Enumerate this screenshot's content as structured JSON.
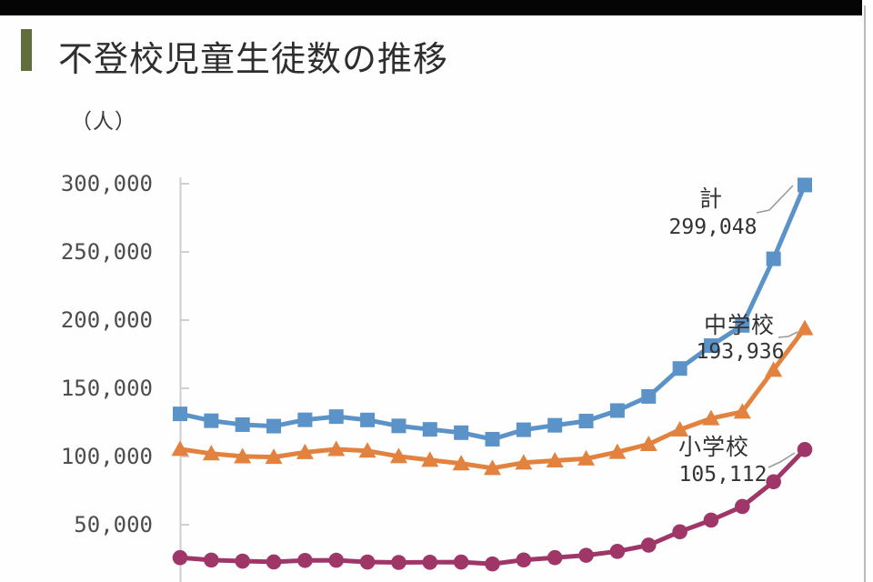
{
  "page": {
    "title": "不登校児童生徒数の推移"
  },
  "chart_data": {
    "type": "line",
    "title": "不登校児童生徒数の推移",
    "unit": "（人）",
    "ylim": [
      0,
      300000
    ],
    "grid": false,
    "x_axis_labels_visible": false,
    "y_ticks": [
      {
        "label": "300,000",
        "value": 300000
      },
      {
        "label": "250,000",
        "value": 250000
      },
      {
        "label": "200,000",
        "value": 200000
      },
      {
        "label": "150,000",
        "value": 150000
      },
      {
        "label": "100,000",
        "value": 100000
      },
      {
        "label": "50,000",
        "value": 50000
      }
    ],
    "series": [
      {
        "name": "計",
        "end_label": "299,048",
        "color": "#5b93c9",
        "marker": "square",
        "values": [
          131252,
          126226,
          123358,
          122287,
          126894,
          129255,
          126805,
          122432,
          119891,
          117458,
          112689,
          119617,
          122897,
          125991,
          133683,
          144031,
          164528,
          181272,
          196127,
          244940,
          299048
        ]
      },
      {
        "name": "中学校",
        "end_label": "193,936",
        "color": "#e2823e",
        "marker": "triangle",
        "values": [
          105383,
          102149,
          100040,
          99578,
          103069,
          105328,
          104153,
          100105,
          97428,
          94836,
          91446,
          95442,
          97033,
          98408,
          103235,
          108999,
          119687,
          127922,
          132777,
          163442,
          193936
        ]
      },
      {
        "name": "小学校",
        "end_label": "105,112",
        "color": "#9e3768",
        "marker": "circle",
        "values": [
          25869,
          24077,
          23318,
          22709,
          23825,
          23927,
          22652,
          22327,
          22463,
          22622,
          21243,
          24175,
          25864,
          27583,
          30448,
          35032,
          44841,
          53350,
          63350,
          81498,
          105112
        ]
      }
    ]
  }
}
